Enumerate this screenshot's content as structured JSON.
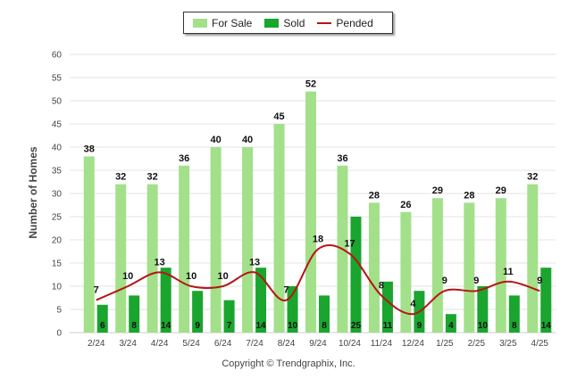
{
  "chart_data": {
    "type": "bar",
    "categories": [
      "2/24",
      "3/24",
      "4/24",
      "5/24",
      "6/24",
      "7/24",
      "8/24",
      "9/24",
      "10/24",
      "11/24",
      "12/24",
      "1/25",
      "2/25",
      "3/25",
      "4/25"
    ],
    "series": [
      {
        "name": "For Sale",
        "kind": "bar",
        "color": "#a3e08a",
        "values": [
          38,
          32,
          32,
          36,
          40,
          40,
          45,
          52,
          36,
          28,
          26,
          29,
          28,
          29,
          32
        ]
      },
      {
        "name": "Sold",
        "kind": "bar",
        "color": "#1aa52e",
        "values": [
          6,
          8,
          14,
          9,
          7,
          14,
          10,
          8,
          25,
          11,
          9,
          4,
          10,
          8,
          14
        ]
      },
      {
        "name": "Pended",
        "kind": "line",
        "color": "#b81414",
        "values": [
          7,
          10,
          13,
          10,
          10,
          13,
          7,
          18,
          17,
          8,
          4,
          9,
          9,
          11,
          9
        ]
      }
    ],
    "ylabel": "Number of Homes",
    "xlabel": "",
    "ylim": [
      0,
      60
    ],
    "yticks": [
      0,
      5,
      10,
      15,
      20,
      25,
      30,
      35,
      40,
      45,
      50,
      55,
      60
    ],
    "grid": true,
    "legend_position": "top-center"
  },
  "legend": {
    "items": [
      "For Sale",
      "Sold",
      "Pended"
    ]
  },
  "footer": {
    "credit": "Copyright © Trendgraphix, Inc."
  }
}
